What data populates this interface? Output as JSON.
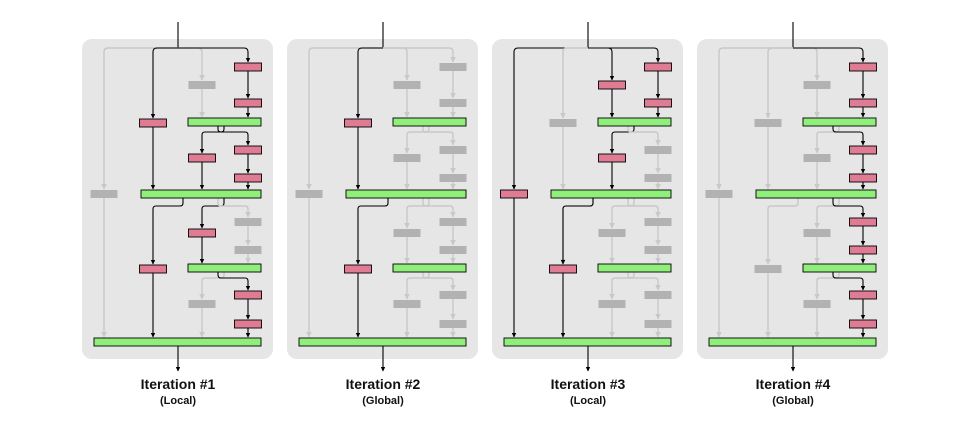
{
  "colors": {
    "panel_bg": "#e6e6e6",
    "active_block": "#90ee7a",
    "active_bar": "#e07b94",
    "inactive_bar": "#b2b2b2",
    "active_line": "#000000",
    "inactive_line": "#c8c8c8"
  },
  "iterations": [
    {
      "title": "Iteration #1",
      "subtitle": "(Local)"
    },
    {
      "title": "Iteration #2",
      "subtitle": "(Global)"
    },
    {
      "title": "Iteration #3",
      "subtitle": "(Local)"
    },
    {
      "title": "Iteration #4",
      "subtitle": "(Global)"
    }
  ]
}
